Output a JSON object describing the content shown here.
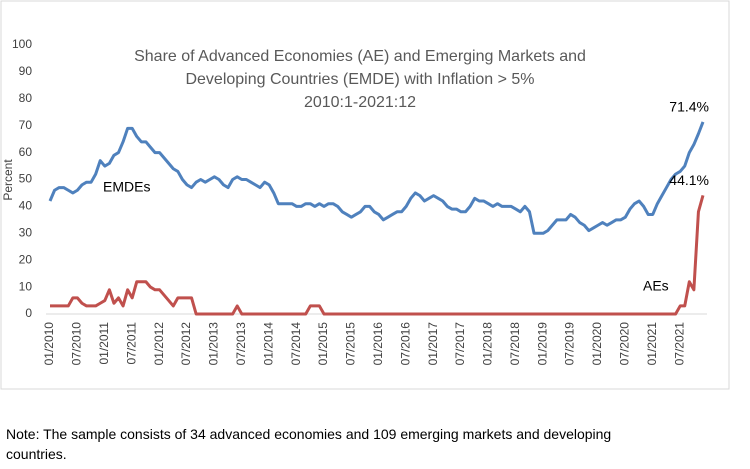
{
  "chart_data": {
    "type": "line",
    "title": [
      "Share of Advanced Economies (AE) and Emerging Markets and",
      "Developing Countries (EMDE) with Inflation > 5%"
    ],
    "subtitle": "2010:1-2021:12",
    "y_label": "Percent",
    "categories": [
      "01/2010",
      null,
      null,
      null,
      null,
      null,
      "07/2010",
      null,
      null,
      null,
      null,
      null,
      "01/2011",
      null,
      null,
      null,
      null,
      null,
      "07/2011",
      null,
      null,
      null,
      null,
      null,
      "01/2012",
      null,
      null,
      null,
      null,
      null,
      "07/2012",
      null,
      null,
      null,
      null,
      null,
      "01/2013",
      null,
      null,
      null,
      null,
      null,
      "07/2013",
      null,
      null,
      null,
      null,
      null,
      "01/2014",
      null,
      null,
      null,
      null,
      null,
      "07/2014",
      null,
      null,
      null,
      null,
      null,
      "01/2015",
      null,
      null,
      null,
      null,
      null,
      "07/2015",
      null,
      null,
      null,
      null,
      null,
      "01/2016",
      null,
      null,
      null,
      null,
      null,
      "07/2016",
      null,
      null,
      null,
      null,
      null,
      "01/2017",
      null,
      null,
      null,
      null,
      null,
      "07/2017",
      null,
      null,
      null,
      null,
      null,
      "01/2018",
      null,
      null,
      null,
      null,
      null,
      "07/2018",
      null,
      null,
      null,
      null,
      null,
      "01/2019",
      null,
      null,
      null,
      null,
      null,
      "07/2019",
      null,
      null,
      null,
      null,
      null,
      "01/2020",
      null,
      null,
      null,
      null,
      null,
      "07/2020",
      null,
      null,
      null,
      null,
      null,
      "01/2021",
      null,
      null,
      null,
      null,
      null,
      "07/2021",
      null,
      null,
      null,
      null,
      null
    ],
    "series": [
      {
        "name": "EMDEs",
        "color": "#4f81bd",
        "values": [
          42,
          46,
          47,
          47,
          46,
          45,
          46,
          48,
          49,
          49,
          52,
          57,
          55,
          56,
          59,
          60,
          64,
          69,
          69,
          66,
          64,
          64,
          62,
          60,
          60,
          58,
          56,
          54,
          53,
          50,
          48,
          47,
          49,
          50,
          49,
          50,
          51,
          50,
          48,
          47,
          50,
          51,
          50,
          50,
          49,
          48,
          47,
          49,
          48,
          45,
          41,
          41,
          41,
          41,
          40,
          40,
          41,
          41,
          40,
          41,
          40,
          41,
          41,
          40,
          38,
          37,
          36,
          37,
          38,
          40,
          40,
          38,
          37,
          35,
          36,
          37,
          38,
          38,
          40,
          43,
          45,
          44,
          42,
          43,
          44,
          43,
          42,
          40,
          39,
          39,
          38,
          38,
          40,
          43,
          42,
          42,
          41,
          40,
          41,
          40,
          40,
          40,
          39,
          38,
          40,
          38,
          30,
          30,
          30,
          31,
          33,
          35,
          35,
          35,
          37,
          36,
          34,
          33,
          31,
          32,
          33,
          34,
          33,
          34,
          35,
          35,
          36,
          39,
          41,
          42,
          40,
          37,
          37,
          41,
          44,
          47,
          50,
          52,
          53,
          55,
          60,
          63,
          67,
          71.4
        ],
        "value_labels": {
          "143": "71.4%"
        }
      },
      {
        "name": "AEs",
        "color": "#c0504d",
        "values": [
          3,
          3,
          3,
          3,
          3,
          6,
          6,
          4,
          3,
          3,
          3,
          4,
          5,
          9,
          4,
          6,
          3,
          9,
          6,
          12,
          12,
          12,
          10,
          9,
          9,
          7,
          5,
          3,
          6,
          6,
          6,
          6,
          0,
          0,
          0,
          0,
          0,
          0,
          0,
          0,
          0,
          3,
          0,
          0,
          0,
          0,
          0,
          0,
          0,
          0,
          0,
          0,
          0,
          0,
          0,
          0,
          0,
          3,
          3,
          3,
          0,
          0,
          0,
          0,
          0,
          0,
          0,
          0,
          0,
          0,
          0,
          0,
          0,
          0,
          0,
          0,
          0,
          0,
          0,
          0,
          0,
          0,
          0,
          0,
          0,
          0,
          0,
          0,
          0,
          0,
          0,
          0,
          0,
          0,
          0,
          0,
          0,
          0,
          0,
          0,
          0,
          0,
          0,
          0,
          0,
          0,
          0,
          0,
          0,
          0,
          0,
          0,
          0,
          0,
          0,
          0,
          0,
          0,
          0,
          0,
          0,
          0,
          0,
          0,
          0,
          0,
          0,
          0,
          0,
          0,
          0,
          0,
          0,
          0,
          0,
          0,
          0,
          0,
          3,
          3,
          12,
          9,
          38,
          44.1
        ],
        "value_labels": {
          "143": "44.1%"
        }
      }
    ],
    "ylim": [
      0,
      100
    ],
    "yticks": [
      0,
      10,
      20,
      30,
      40,
      50,
      60,
      70,
      80,
      90,
      100
    ],
    "grid": false
  },
  "note": "Note: The sample consists of 34 advanced economies and 109 emerging markets and developing countries."
}
